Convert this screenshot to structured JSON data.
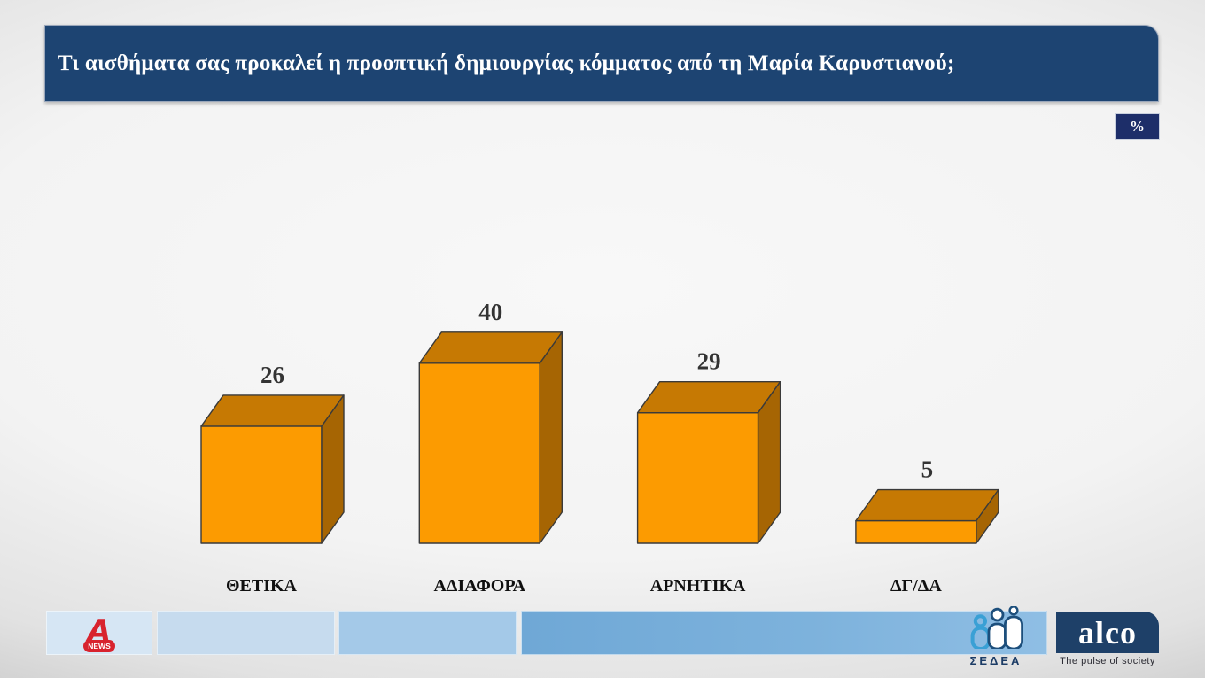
{
  "header": {
    "title": "Τι αισθήματα σας προκαλεί η προοπτική δημιουργίας κόμματος από τη Μαρία Καρυστιανού;",
    "unit_badge": "%"
  },
  "chart_data": {
    "type": "bar",
    "style": "3d-boxes",
    "title": "Τι αισθήματα σας προκαλεί η προοπτική δημιουργίας κόμματος από τη Μαρία Καρυστιανού;",
    "unit": "%",
    "categories": [
      "ΘΕΤΙΚΑ",
      "ΑΔΙΑΦΟΡΑ",
      "ΑΡΝΗΤΙΚΑ",
      "ΔΓ/ΔΑ"
    ],
    "values": [
      26,
      40,
      29,
      5
    ],
    "xlabel": "",
    "ylabel": "",
    "ylim": [
      0,
      45
    ],
    "grid": false,
    "legend": false,
    "data_labels": true,
    "colors": {
      "bar_front": "#FC9B01",
      "bar_top": "#C67903",
      "bar_side": "#A66503",
      "outline": "#3a3a3a",
      "value_label": "#333333",
      "category_label": "#101010"
    }
  },
  "colors": {
    "header_bg": "#1d4472",
    "badge_bg": "#1d2e69",
    "footer_strip_1": "#d6e6f4",
    "footer_strip_2": "#c6dbee",
    "footer_strip_3": "#a4c9e8",
    "footer_strip_4": "#6fa8d6",
    "alco_bg": "#1e4068",
    "alpha_red": "#d8232e",
    "sedea_blue": "#3aa0d5",
    "sedea_navy": "#1d4f7c"
  },
  "footer": {
    "alpha_news": {
      "a_glyph": "A",
      "news_label": "NEWS"
    },
    "sedea": {
      "label": "ΣΕΔΕΑ"
    },
    "alco": {
      "label": "alco",
      "tagline": "The pulse of society"
    }
  }
}
